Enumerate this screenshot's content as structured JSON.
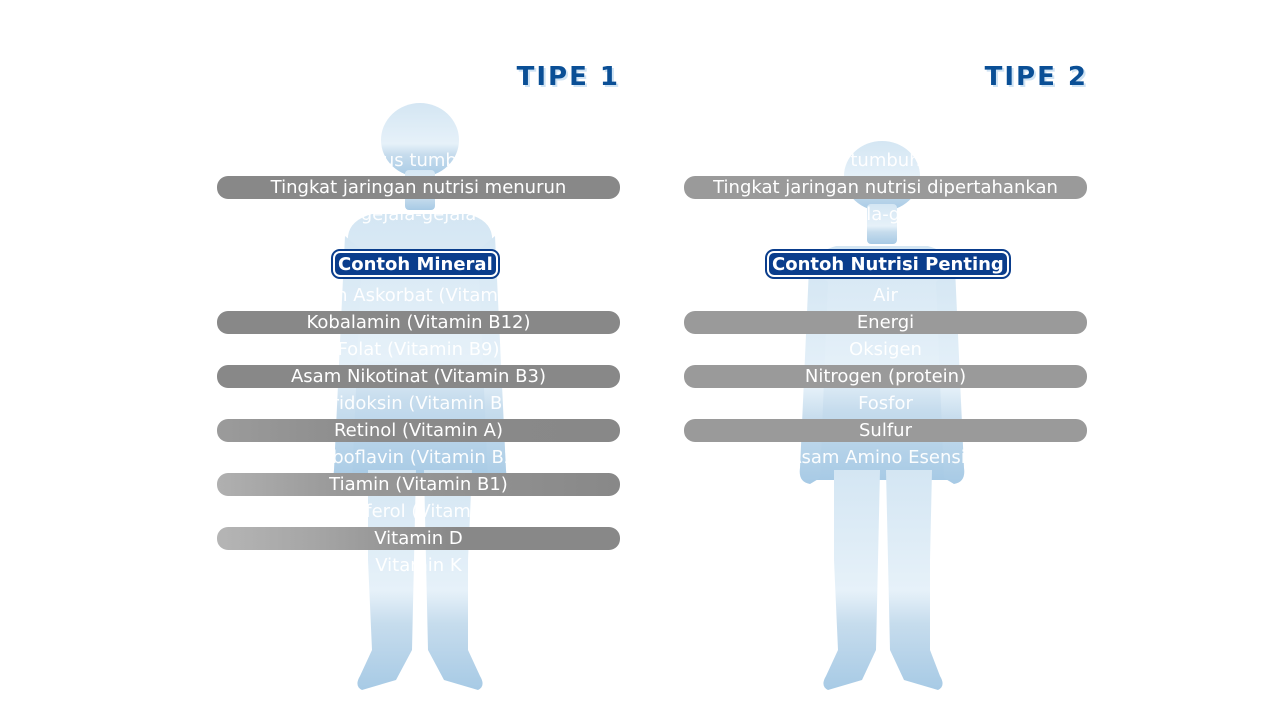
{
  "type1": {
    "title": "TIPE 1",
    "rows": [
      "terus tumbuh",
      "Tingkat jaringan nutrisi menurun",
      "gejala-gejala",
      "Asam Askorbat (Vitamin C)",
      "Kobalamin (Vitamin B12)",
      "Folat (Vitamin B9)",
      "Asam Nikotinat (Vitamin B3)",
      "Piridoksin (Vitamin B6)",
      "Retinol (Vitamin A)",
      "Riboflavin (Vitamin B2)",
      "Tiamin (Vitamin B1)",
      "Tokoferol (Vitamin E)",
      "Vitamin D",
      "Vitamin K"
    ],
    "heading": "Contoh Mineral"
  },
  "type2": {
    "title": "TIPE 2",
    "rows": [
      "tumbuh",
      "Tingkat jaringan nutrisi dipertahankan",
      "gejala-gejala",
      "Air",
      "Energi",
      "Oksigen",
      "Nitrogen (protein)",
      "Fosfor",
      "Sulfur",
      "Asam Amino Esensial"
    ],
    "heading": "Contoh Nutrisi Penting"
  },
  "colors": {
    "title": "#0a4f96",
    "heading_bg": "#0a3d8c",
    "bar": "#888888",
    "silhouette_top": "#d8e8f4",
    "silhouette_bottom": "#a9cce6"
  },
  "icons": {
    "figure1": "child-silhouette-icon",
    "figure2": "child-silhouette-icon"
  }
}
